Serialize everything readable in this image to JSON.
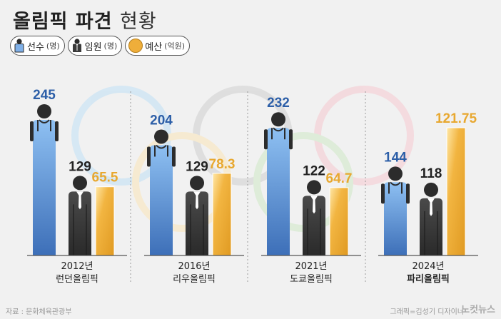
{
  "title": {
    "main": "올림픽 파견",
    "sub": "현황"
  },
  "legend": [
    {
      "label": "선수",
      "unit": "(명)",
      "icon": "athlete-icon",
      "color": "#6a9bd8"
    },
    {
      "label": "임원",
      "unit": "(명)",
      "icon": "official-icon",
      "color": "#3a3a3a"
    },
    {
      "label": "예산",
      "unit": "(억원)",
      "icon": "budget-dot-icon",
      "color": "#efae3a"
    }
  ],
  "footer": {
    "source": "자료 : 문화체육관광부",
    "credit": "그래픽=김성기 디자이너",
    "brand": "노컷뉴스"
  },
  "colors": {
    "athlete": "#6a9bd8",
    "official": "#3a3a3a",
    "budget": "#efae3a",
    "athlete_label": "#2d5fa8",
    "official_label": "#222222",
    "budget_label": "#e8a830"
  },
  "chart_data": {
    "type": "bar",
    "groups": [
      {
        "year": "2012년",
        "name": "런던올림픽"
      },
      {
        "year": "2016년",
        "name": "리우올림픽"
      },
      {
        "year": "2021년",
        "name": "도쿄올림픽"
      },
      {
        "year": "2024년",
        "name": "파리올림픽"
      }
    ],
    "series": [
      {
        "name": "선수(명)",
        "values": [
          245,
          204,
          232,
          144
        ],
        "labels": [
          "245",
          "204",
          "232",
          "144"
        ]
      },
      {
        "name": "임원(명)",
        "values": [
          129,
          129,
          122,
          118
        ],
        "labels": [
          "129",
          "129",
          "122",
          "118"
        ]
      },
      {
        "name": "예산(억원)",
        "values": [
          65.5,
          78.3,
          64.7,
          121.75
        ],
        "labels": [
          "65.5",
          "78.3",
          "64.7",
          "121.75"
        ]
      }
    ],
    "grid": false,
    "legend_position": "top-left"
  }
}
